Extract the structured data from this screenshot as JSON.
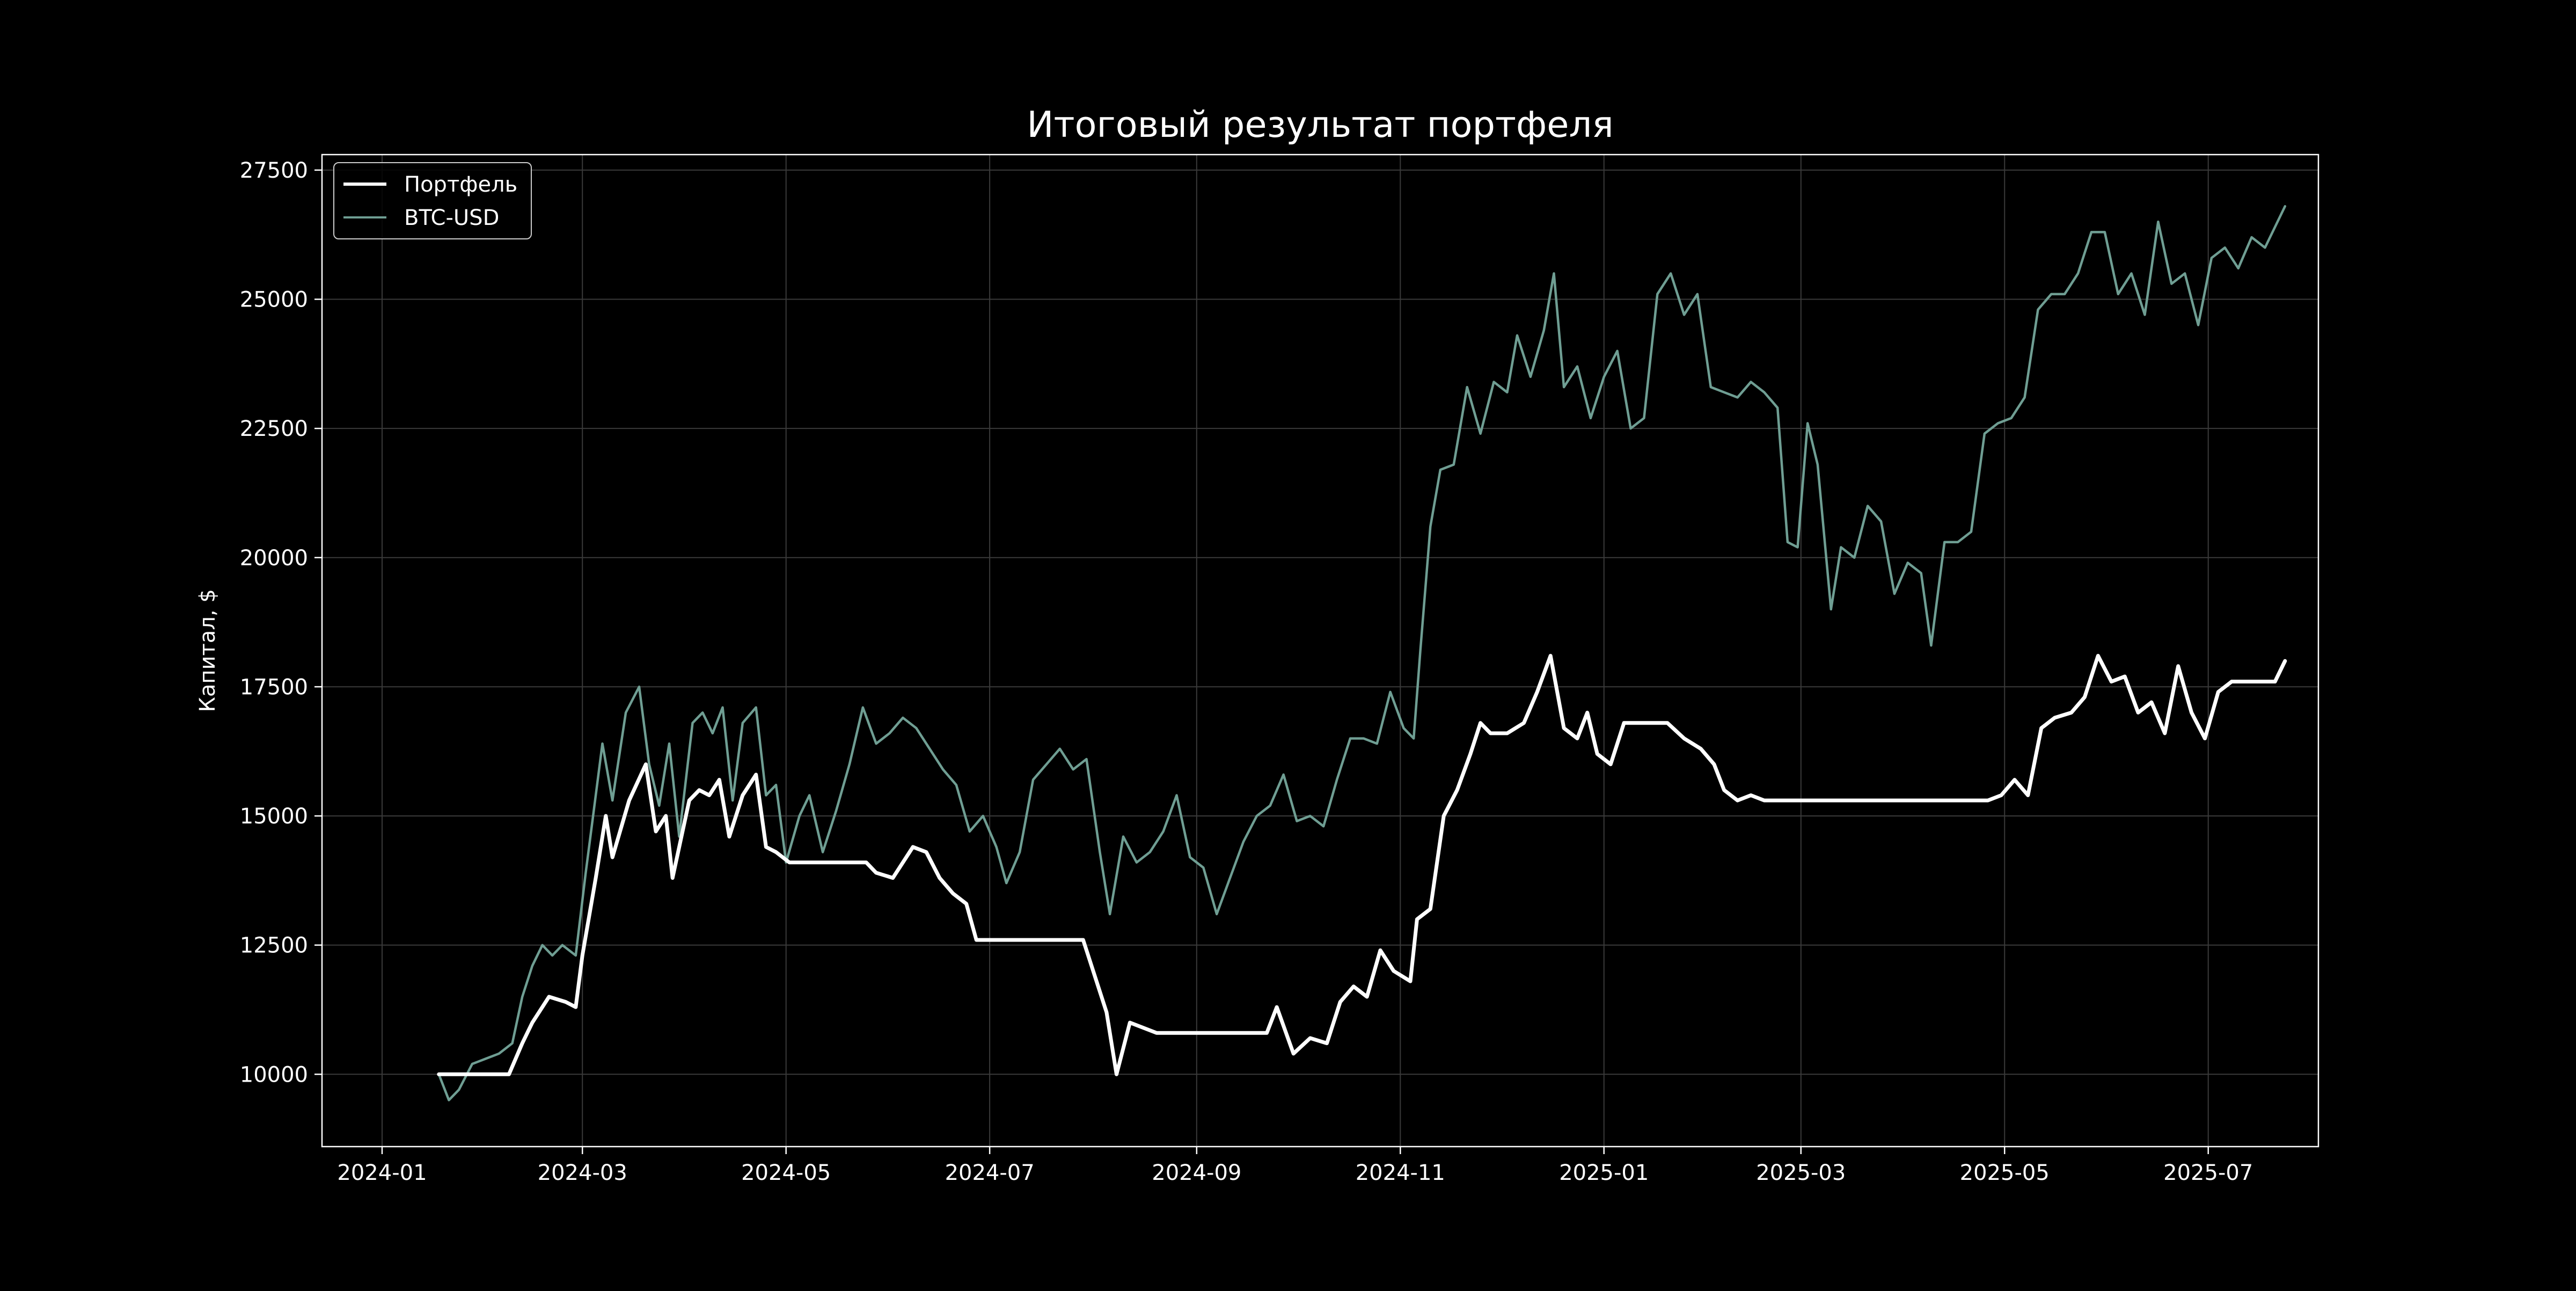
{
  "chart_data": {
    "type": "line",
    "title": "Итоговый результат портфеля",
    "xlabel": "",
    "ylabel": "Капитал, $",
    "x_ticks": [
      "2024-01",
      "2024-03",
      "2024-05",
      "2024-07",
      "2024-09",
      "2024-11",
      "2025-01",
      "2025-03",
      "2025-05",
      "2025-07"
    ],
    "y_ticks": [
      "10000",
      "12500",
      "15000",
      "17500",
      "20000",
      "22500",
      "25000",
      "27500"
    ],
    "xlim": [
      "2023-12-14",
      "2025-08-03"
    ],
    "ylim": [
      8600,
      27800
    ],
    "grid": true,
    "legend": "top-left",
    "colors": {
      "background": "#000000",
      "portfolio": "#ffffff",
      "btc": "#6f9e93",
      "grid": "#3a3a3a",
      "axes": "#ffffff"
    },
    "series": [
      {
        "name": "Портфель",
        "points": [
          [
            "2024-01-18",
            10000
          ],
          [
            "2024-02-08",
            10000
          ],
          [
            "2024-02-12",
            10600
          ],
          [
            "2024-02-15",
            11000
          ],
          [
            "2024-02-20",
            11500
          ],
          [
            "2024-02-25",
            11400
          ],
          [
            "2024-02-28",
            11300
          ],
          [
            "2024-03-01",
            12300
          ],
          [
            "2024-03-05",
            13800
          ],
          [
            "2024-03-08",
            15000
          ],
          [
            "2024-03-10",
            14200
          ],
          [
            "2024-03-15",
            15300
          ],
          [
            "2024-03-20",
            16000
          ],
          [
            "2024-03-23",
            14700
          ],
          [
            "2024-03-26",
            15000
          ],
          [
            "2024-03-28",
            13800
          ],
          [
            "2024-04-02",
            15300
          ],
          [
            "2024-04-05",
            15500
          ],
          [
            "2024-04-08",
            15400
          ],
          [
            "2024-04-11",
            15700
          ],
          [
            "2024-04-14",
            14600
          ],
          [
            "2024-04-18",
            15400
          ],
          [
            "2024-04-22",
            15800
          ],
          [
            "2024-04-25",
            14400
          ],
          [
            "2024-04-28",
            14300
          ],
          [
            "2024-05-02",
            14100
          ],
          [
            "2024-05-25",
            14100
          ],
          [
            "2024-05-28",
            13900
          ],
          [
            "2024-06-02",
            13800
          ],
          [
            "2024-06-08",
            14400
          ],
          [
            "2024-06-12",
            14300
          ],
          [
            "2024-06-16",
            13800
          ],
          [
            "2024-06-20",
            13500
          ],
          [
            "2024-06-24",
            13300
          ],
          [
            "2024-06-27",
            12600
          ],
          [
            "2024-06-29",
            12600
          ],
          [
            "2024-07-29",
            12600
          ],
          [
            "2024-08-02",
            11800
          ],
          [
            "2024-08-05",
            11200
          ],
          [
            "2024-08-08",
            10000
          ],
          [
            "2024-08-12",
            11000
          ],
          [
            "2024-08-16",
            10900
          ],
          [
            "2024-08-20",
            10800
          ],
          [
            "2024-09-22",
            10800
          ],
          [
            "2024-09-25",
            11300
          ],
          [
            "2024-09-30",
            10400
          ],
          [
            "2024-10-05",
            10700
          ],
          [
            "2024-10-10",
            10600
          ],
          [
            "2024-10-14",
            11400
          ],
          [
            "2024-10-18",
            11700
          ],
          [
            "2024-10-22",
            11500
          ],
          [
            "2024-10-26",
            12400
          ],
          [
            "2024-10-30",
            12000
          ],
          [
            "2024-11-04",
            11800
          ],
          [
            "2024-11-06",
            13000
          ],
          [
            "2024-11-10",
            13200
          ],
          [
            "2024-11-14",
            15000
          ],
          [
            "2024-11-18",
            15500
          ],
          [
            "2024-11-22",
            16200
          ],
          [
            "2024-11-25",
            16800
          ],
          [
            "2024-11-28",
            16600
          ],
          [
            "2024-12-03",
            16600
          ],
          [
            "2024-12-08",
            16800
          ],
          [
            "2024-12-12",
            17400
          ],
          [
            "2024-12-16",
            18100
          ],
          [
            "2024-12-20",
            16700
          ],
          [
            "2024-12-24",
            16500
          ],
          [
            "2024-12-27",
            17000
          ],
          [
            "2024-12-30",
            16200
          ],
          [
            "2025-01-03",
            16000
          ],
          [
            "2025-01-07",
            16800
          ],
          [
            "2025-01-20",
            16800
          ],
          [
            "2025-01-25",
            16500
          ],
          [
            "2025-01-30",
            16300
          ],
          [
            "2025-02-03",
            16000
          ],
          [
            "2025-02-06",
            15500
          ],
          [
            "2025-02-10",
            15300
          ],
          [
            "2025-02-14",
            15400
          ],
          [
            "2025-02-18",
            15300
          ],
          [
            "2025-04-26",
            15300
          ],
          [
            "2025-04-30",
            15400
          ],
          [
            "2025-05-04",
            15700
          ],
          [
            "2025-05-08",
            15400
          ],
          [
            "2025-05-12",
            16700
          ],
          [
            "2025-05-16",
            16900
          ],
          [
            "2025-05-21",
            17000
          ],
          [
            "2025-05-25",
            17300
          ],
          [
            "2025-05-29",
            18100
          ],
          [
            "2025-06-02",
            17600
          ],
          [
            "2025-06-06",
            17700
          ],
          [
            "2025-06-10",
            17000
          ],
          [
            "2025-06-14",
            17200
          ],
          [
            "2025-06-18",
            16600
          ],
          [
            "2025-06-22",
            17900
          ],
          [
            "2025-06-26",
            17000
          ],
          [
            "2025-06-30",
            16500
          ],
          [
            "2025-07-04",
            17400
          ],
          [
            "2025-07-08",
            17600
          ],
          [
            "2025-07-14",
            17600
          ],
          [
            "2025-07-21",
            17600
          ],
          [
            "2025-07-24",
            18000
          ]
        ]
      },
      {
        "name": "BTC-USD",
        "points": [
          [
            "2024-01-18",
            10000
          ],
          [
            "2024-01-21",
            9500
          ],
          [
            "2024-01-24",
            9700
          ],
          [
            "2024-01-28",
            10200
          ],
          [
            "2024-02-01",
            10300
          ],
          [
            "2024-02-05",
            10400
          ],
          [
            "2024-02-09",
            10600
          ],
          [
            "2024-02-12",
            11500
          ],
          [
            "2024-02-15",
            12100
          ],
          [
            "2024-02-18",
            12500
          ],
          [
            "2024-02-21",
            12300
          ],
          [
            "2024-02-24",
            12500
          ],
          [
            "2024-02-28",
            12300
          ],
          [
            "2024-03-02",
            13900
          ],
          [
            "2024-03-04",
            14900
          ],
          [
            "2024-03-07",
            16400
          ],
          [
            "2024-03-10",
            15300
          ],
          [
            "2024-03-14",
            17000
          ],
          [
            "2024-03-18",
            17500
          ],
          [
            "2024-03-21",
            16000
          ],
          [
            "2024-03-24",
            15200
          ],
          [
            "2024-03-27",
            16400
          ],
          [
            "2024-03-30",
            14600
          ],
          [
            "2024-04-03",
            16800
          ],
          [
            "2024-04-06",
            17000
          ],
          [
            "2024-04-09",
            16600
          ],
          [
            "2024-04-12",
            17100
          ],
          [
            "2024-04-15",
            15300
          ],
          [
            "2024-04-18",
            16800
          ],
          [
            "2024-04-22",
            17100
          ],
          [
            "2024-04-25",
            15400
          ],
          [
            "2024-04-28",
            15600
          ],
          [
            "2024-05-01",
            14100
          ],
          [
            "2024-05-05",
            15000
          ],
          [
            "2024-05-08",
            15400
          ],
          [
            "2024-05-12",
            14300
          ],
          [
            "2024-05-16",
            15100
          ],
          [
            "2024-05-20",
            16000
          ],
          [
            "2024-05-24",
            17100
          ],
          [
            "2024-05-28",
            16400
          ],
          [
            "2024-06-01",
            16600
          ],
          [
            "2024-06-05",
            16900
          ],
          [
            "2024-06-09",
            16700
          ],
          [
            "2024-06-13",
            16300
          ],
          [
            "2024-06-17",
            15900
          ],
          [
            "2024-06-21",
            15600
          ],
          [
            "2024-06-25",
            14700
          ],
          [
            "2024-06-29",
            15000
          ],
          [
            "2024-07-03",
            14400
          ],
          [
            "2024-07-06",
            13700
          ],
          [
            "2024-07-10",
            14300
          ],
          [
            "2024-07-14",
            15700
          ],
          [
            "2024-07-18",
            16000
          ],
          [
            "2024-07-22",
            16300
          ],
          [
            "2024-07-26",
            15900
          ],
          [
            "2024-07-30",
            16100
          ],
          [
            "2024-08-03",
            14300
          ],
          [
            "2024-08-06",
            13100
          ],
          [
            "2024-08-10",
            14600
          ],
          [
            "2024-08-14",
            14100
          ],
          [
            "2024-08-18",
            14300
          ],
          [
            "2024-08-22",
            14700
          ],
          [
            "2024-08-26",
            15400
          ],
          [
            "2024-08-30",
            14200
          ],
          [
            "2024-09-03",
            14000
          ],
          [
            "2024-09-07",
            13100
          ],
          [
            "2024-09-11",
            13800
          ],
          [
            "2024-09-15",
            14500
          ],
          [
            "2024-09-19",
            15000
          ],
          [
            "2024-09-23",
            15200
          ],
          [
            "2024-09-27",
            15800
          ],
          [
            "2024-10-01",
            14900
          ],
          [
            "2024-10-05",
            15000
          ],
          [
            "2024-10-09",
            14800
          ],
          [
            "2024-10-13",
            15700
          ],
          [
            "2024-10-17",
            16500
          ],
          [
            "2024-10-21",
            16500
          ],
          [
            "2024-10-25",
            16400
          ],
          [
            "2024-10-29",
            17400
          ],
          [
            "2024-11-02",
            16700
          ],
          [
            "2024-11-05",
            16500
          ],
          [
            "2024-11-07",
            18200
          ],
          [
            "2024-11-10",
            20600
          ],
          [
            "2024-11-13",
            21700
          ],
          [
            "2024-11-17",
            21800
          ],
          [
            "2024-11-21",
            23300
          ],
          [
            "2024-11-25",
            22400
          ],
          [
            "2024-11-29",
            23400
          ],
          [
            "2024-12-03",
            23200
          ],
          [
            "2024-12-06",
            24300
          ],
          [
            "2024-12-10",
            23500
          ],
          [
            "2024-12-14",
            24400
          ],
          [
            "2024-12-17",
            25500
          ],
          [
            "2024-12-20",
            23300
          ],
          [
            "2024-12-24",
            23700
          ],
          [
            "2024-12-28",
            22700
          ],
          [
            "2025-01-01",
            23500
          ],
          [
            "2025-01-05",
            24000
          ],
          [
            "2025-01-09",
            22500
          ],
          [
            "2025-01-13",
            22700
          ],
          [
            "2025-01-17",
            25100
          ],
          [
            "2025-01-21",
            25500
          ],
          [
            "2025-01-25",
            24700
          ],
          [
            "2025-01-29",
            25100
          ],
          [
            "2025-02-02",
            23300
          ],
          [
            "2025-02-06",
            23200
          ],
          [
            "2025-02-10",
            23100
          ],
          [
            "2025-02-14",
            23400
          ],
          [
            "2025-02-18",
            23200
          ],
          [
            "2025-02-22",
            22900
          ],
          [
            "2025-02-25",
            20300
          ],
          [
            "2025-02-28",
            20200
          ],
          [
            "2025-03-03",
            22600
          ],
          [
            "2025-03-06",
            21800
          ],
          [
            "2025-03-10",
            19000
          ],
          [
            "2025-03-13",
            20200
          ],
          [
            "2025-03-17",
            20000
          ],
          [
            "2025-03-21",
            21000
          ],
          [
            "2025-03-25",
            20700
          ],
          [
            "2025-03-29",
            19300
          ],
          [
            "2025-04-02",
            19900
          ],
          [
            "2025-04-06",
            19700
          ],
          [
            "2025-04-09",
            18300
          ],
          [
            "2025-04-13",
            20300
          ],
          [
            "2025-04-17",
            20300
          ],
          [
            "2025-04-21",
            20500
          ],
          [
            "2025-04-25",
            22400
          ],
          [
            "2025-04-29",
            22600
          ],
          [
            "2025-05-03",
            22700
          ],
          [
            "2025-05-07",
            23100
          ],
          [
            "2025-05-11",
            24800
          ],
          [
            "2025-05-15",
            25100
          ],
          [
            "2025-05-19",
            25100
          ],
          [
            "2025-05-23",
            25500
          ],
          [
            "2025-05-27",
            26300
          ],
          [
            "2025-05-31",
            26300
          ],
          [
            "2025-06-04",
            25100
          ],
          [
            "2025-06-08",
            25500
          ],
          [
            "2025-06-12",
            24700
          ],
          [
            "2025-06-16",
            26500
          ],
          [
            "2025-06-20",
            25300
          ],
          [
            "2025-06-24",
            25500
          ],
          [
            "2025-06-28",
            24500
          ],
          [
            "2025-07-02",
            25800
          ],
          [
            "2025-07-06",
            26000
          ],
          [
            "2025-07-10",
            25600
          ],
          [
            "2025-07-14",
            26200
          ],
          [
            "2025-07-18",
            26000
          ],
          [
            "2025-07-24",
            26800
          ]
        ]
      }
    ]
  }
}
